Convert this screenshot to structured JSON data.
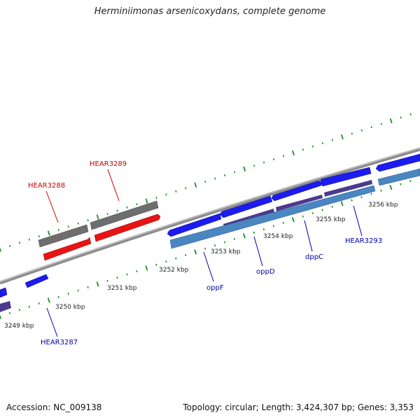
{
  "title": "Herminiimonas arsenicoxydans, complete genome",
  "footer": {
    "accession": "Accession: NC_009138",
    "summary": "Topology: circular; Length: 3,424,307 bp; Genes: 3,353"
  },
  "colors": {
    "backbone": "#8c8c8c",
    "tick": "#1f8a1f",
    "forward_cds": "#1c1cf0",
    "reverse_cds": "#1c1cf0",
    "pseudo_gene": "#e81414",
    "gray_feature": "#6e6e6e",
    "operon_band": "#4a86c0",
    "operon_purple": "#4b3a8e",
    "label_red": "#cc0000",
    "label_blue": "#0000aa"
  },
  "scale_labels": [
    "3249 kbp",
    "3250 kbp",
    "3251 kbp",
    "3252 kbp",
    "3253 kbp",
    "3254 kbp",
    "3255 kbp",
    "3256 kbp"
  ],
  "gene_labels": [
    {
      "name": "HEAR3287",
      "color": "blue"
    },
    {
      "name": "HEAR3288",
      "color": "red"
    },
    {
      "name": "HEAR3289",
      "color": "red"
    },
    {
      "name": "oppF",
      "color": "blue"
    },
    {
      "name": "oppD",
      "color": "blue"
    },
    {
      "name": "dppC",
      "color": "blue"
    },
    {
      "name": "HEAR3293",
      "color": "blue"
    }
  ]
}
